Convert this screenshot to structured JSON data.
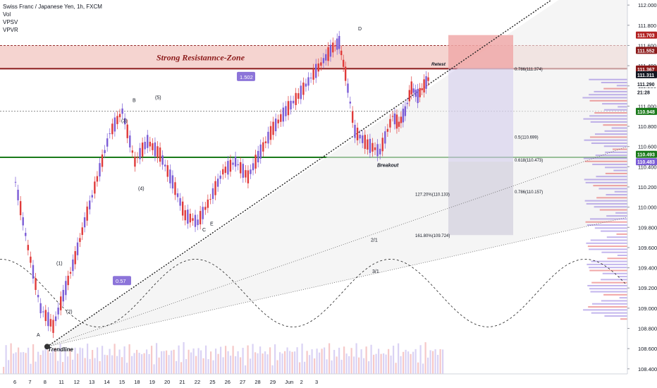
{
  "header": {
    "symbol_line": "Swiss Franc / Japanese Yen, 1h, FXCM",
    "indicators": [
      "Vol",
      "VPSV",
      "VPVR"
    ]
  },
  "colors": {
    "up": "#7b5cd6",
    "down": "#e03a3a",
    "resistance_fill": "#f3c9c4",
    "resistance_line": "#8b1a1a",
    "support_line": "#1a7a1a",
    "label_purple": "#8c74d9",
    "projection_fill": "#c9c2ec",
    "target_fill": "#f0a9a9"
  },
  "chart_data": {
    "type": "line",
    "title": "Swiss Franc / Japanese Yen, 1h, FXCM",
    "x_ticks": [
      "6",
      "7",
      "8",
      "11",
      "12",
      "13",
      "14",
      "15",
      "18",
      "19",
      "20",
      "21",
      "22",
      "25",
      "26",
      "27",
      "28",
      "29",
      "Jun",
      "2",
      "3"
    ],
    "y_ticks": [
      108.4,
      108.6,
      108.8,
      109.0,
      109.2,
      109.4,
      109.6,
      109.8,
      110.0,
      110.2,
      110.4,
      110.6,
      110.8,
      111.0,
      111.2,
      111.4,
      111.6,
      111.8,
      112.0
    ],
    "ylim": [
      108.35,
      112.05
    ],
    "series": [
      {
        "x": [
          0,
          2,
          4,
          6,
          8,
          9.5,
          11,
          13,
          15,
          17,
          19,
          21,
          23,
          25,
          27,
          29,
          31,
          33,
          35,
          37,
          39,
          41,
          43,
          45,
          47,
          49,
          50.5,
          51.5,
          52.5,
          54,
          56,
          58,
          60,
          61,
          62,
          63,
          64,
          65,
          66
        ],
        "values": [
          110.25,
          109.6,
          109.0,
          108.82,
          109.2,
          109.5,
          109.85,
          110.28,
          110.73,
          110.95,
          110.45,
          110.65,
          110.52,
          110.25,
          109.92,
          109.85,
          110.08,
          110.35,
          110.45,
          110.3,
          110.55,
          110.78,
          110.95,
          111.1,
          111.28,
          111.45,
          111.58,
          111.63,
          111.32,
          110.75,
          110.62,
          110.55,
          110.9,
          110.82,
          110.95,
          111.18,
          111.1,
          111.2,
          111.3
        ]
      }
    ],
    "price_labels": [
      "112.000",
      "111.703",
      "111.552",
      "111.367",
      "111.311",
      "111.290",
      "21:28",
      "110.948",
      "110.493",
      "110.483"
    ],
    "level_labels": [
      "0.786(111.374)",
      "0.5(110.699)",
      "0.618(110.473)",
      "127.20%(110.133)",
      "0.786(110.157)",
      "161.80%(109.724)"
    ],
    "annotations": [
      "Strong Resistannce-Zone",
      "1.502",
      "0.57",
      "Trendline",
      "Breakout",
      "Retest",
      "A",
      "B",
      "C",
      "D",
      "E",
      "(1)",
      "(2)",
      "(3)",
      "(4)",
      "(5)",
      "2/1",
      "3/1"
    ]
  }
}
